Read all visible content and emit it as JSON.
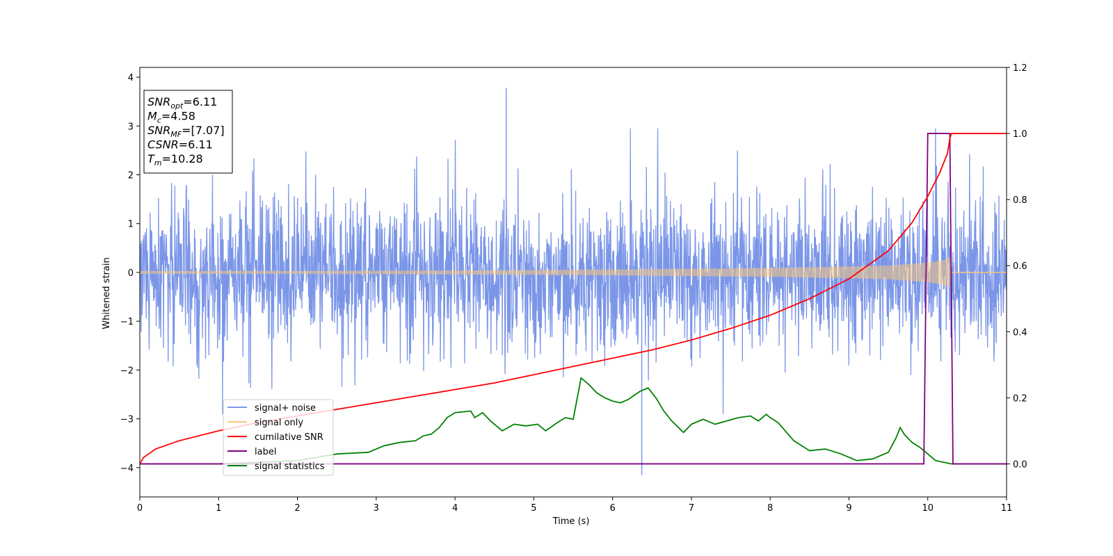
{
  "chart_data": {
    "type": "line",
    "xlabel": "Time (s)",
    "ylabel": "Whitened strain",
    "xlim": [
      0,
      11
    ],
    "ylim": [
      -4.6,
      4.2
    ],
    "y2lim": [
      -0.1,
      1.2
    ],
    "x_ticks": [
      0,
      1,
      2,
      3,
      4,
      5,
      6,
      7,
      8,
      9,
      10,
      11
    ],
    "y_ticks": [
      -4,
      -3,
      -2,
      -1,
      0,
      1,
      2,
      3,
      4
    ],
    "y_tick_labels": [
      "−4",
      "−3",
      "−2",
      "−1",
      "0",
      "1",
      "2",
      "3",
      "4"
    ],
    "y2_ticks": [
      0.0,
      0.2,
      0.4,
      0.6,
      0.8,
      1.0,
      1.2
    ],
    "y2_tick_labels": [
      "0.0",
      "0.2",
      "0.4",
      "0.6",
      "0.8",
      "1.0",
      "1.2"
    ],
    "annotation": {
      "lines": [
        {
          "base": "SNR",
          "sub": "opt",
          "value": "=6.11"
        },
        {
          "base": "M",
          "sub": "c",
          "value": "=4.58"
        },
        {
          "base": "SNR",
          "sub": "MF",
          "value": "=[7.07]"
        },
        {
          "base": "CSNR",
          "sub": "",
          "value": "=6.11"
        },
        {
          "base": "T",
          "sub": "m",
          "value": "=10.28"
        }
      ]
    },
    "legend_position": "lower-left",
    "series": [
      {
        "name": "signal+ noise",
        "color": "#7b96e8",
        "axis": "left",
        "description_values": {
          "noise_sigma": 0.75,
          "typical_peak": 2.2,
          "max_spike": [
            4.65,
            3.78
          ],
          "min_spike": [
            6.37,
            -4.15
          ]
        }
      },
      {
        "name": "signal only",
        "color": "#f5c77e",
        "axis": "left",
        "envelope": {
          "x": [
            0,
            2,
            4,
            6,
            8,
            9,
            9.5,
            10,
            10.2,
            10.28,
            10.3,
            11
          ],
          "y": [
            0.03,
            0.03,
            0.04,
            0.06,
            0.09,
            0.12,
            0.14,
            0.2,
            0.25,
            0.32,
            0.0,
            0.0
          ]
        }
      },
      {
        "name": "cumilative SNR",
        "color": "#ff0000",
        "axis": "right",
        "x": [
          0,
          0.05,
          0.2,
          0.5,
          1,
          1.5,
          2,
          2.5,
          3,
          3.5,
          4,
          4.5,
          5,
          5.5,
          6,
          6.5,
          7,
          7.5,
          8,
          8.5,
          9,
          9.5,
          9.8,
          10,
          10.15,
          10.25,
          10.28,
          10.3,
          11
        ],
        "y": [
          0.0,
          0.02,
          0.045,
          0.07,
          0.1,
          0.125,
          0.145,
          0.165,
          0.185,
          0.205,
          0.225,
          0.245,
          0.27,
          0.295,
          0.32,
          0.345,
          0.375,
          0.41,
          0.45,
          0.5,
          0.56,
          0.645,
          0.73,
          0.81,
          0.88,
          0.94,
          0.985,
          1.0,
          1.0
        ]
      },
      {
        "name": "label",
        "color": "#800080",
        "axis": "right",
        "x": [
          0,
          9.95,
          10.0,
          10.28,
          10.32,
          11
        ],
        "y": [
          0,
          0,
          1,
          1,
          0,
          0
        ]
      },
      {
        "name": "signal statistics",
        "color": "#008000",
        "axis": "right",
        "x": [
          0,
          1,
          2,
          2.5,
          2.9,
          3.1,
          3.3,
          3.5,
          3.6,
          3.7,
          3.8,
          3.9,
          4.0,
          4.2,
          4.25,
          4.35,
          4.45,
          4.6,
          4.75,
          4.9,
          5.05,
          5.15,
          5.3,
          5.4,
          5.5,
          5.6,
          5.7,
          5.8,
          5.9,
          6.0,
          6.1,
          6.2,
          6.35,
          6.45,
          6.55,
          6.65,
          6.75,
          6.9,
          7.0,
          7.15,
          7.3,
          7.45,
          7.6,
          7.75,
          7.85,
          7.95,
          8.0,
          8.1,
          8.3,
          8.5,
          8.7,
          8.9,
          9.1,
          9.3,
          9.5,
          9.6,
          9.65,
          9.7,
          9.8,
          9.9,
          10.0,
          10.1,
          10.3,
          11
        ],
        "y": [
          0.0,
          0.0,
          0.01,
          0.03,
          0.035,
          0.055,
          0.065,
          0.07,
          0.085,
          0.09,
          0.11,
          0.14,
          0.155,
          0.16,
          0.14,
          0.155,
          0.13,
          0.1,
          0.12,
          0.115,
          0.12,
          0.1,
          0.125,
          0.14,
          0.135,
          0.26,
          0.24,
          0.215,
          0.2,
          0.19,
          0.185,
          0.195,
          0.22,
          0.23,
          0.2,
          0.16,
          0.13,
          0.095,
          0.12,
          0.135,
          0.12,
          0.13,
          0.14,
          0.145,
          0.13,
          0.15,
          0.14,
          0.125,
          0.07,
          0.04,
          0.045,
          0.03,
          0.01,
          0.015,
          0.035,
          0.08,
          0.11,
          0.09,
          0.065,
          0.05,
          0.03,
          0.01,
          0.0,
          0.0
        ]
      }
    ]
  }
}
